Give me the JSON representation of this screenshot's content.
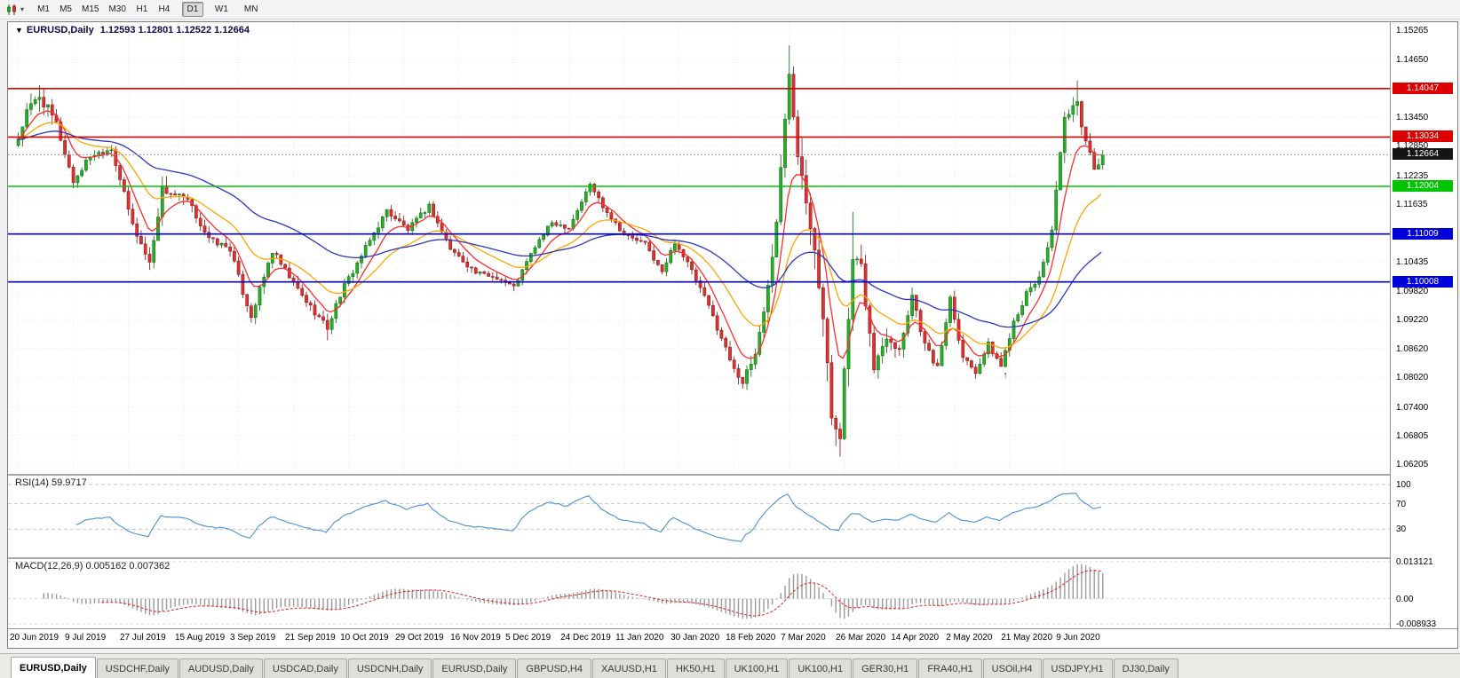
{
  "toolbar": {
    "caret": "▾",
    "timeframes": [
      {
        "label": "M1",
        "active": false
      },
      {
        "label": "M5",
        "active": false
      },
      {
        "label": "M15",
        "active": false
      },
      {
        "label": "M30",
        "active": false
      },
      {
        "label": "H1",
        "active": false
      },
      {
        "label": "H4",
        "active": false
      },
      {
        "label": "D1",
        "active": true
      },
      {
        "label": "W1",
        "active": false
      },
      {
        "label": "MN",
        "active": false
      }
    ]
  },
  "chart": {
    "header": {
      "marker": "▼",
      "symbol": "EURUSD,Daily",
      "ohlc": "1.12593 1.12801 1.12522 1.12664"
    }
  },
  "rsi": {
    "header": "RSI(14) 59.9717",
    "axis": [
      "100",
      "70",
      "30"
    ]
  },
  "macd": {
    "header": "MACD(12,26,9) 0.005162 0.007362",
    "axis": [
      "0.013121",
      "0.00",
      "-0.008933"
    ]
  },
  "tabs": [
    {
      "label": "EURUSD,Daily",
      "active": true
    },
    {
      "label": "USDCHF,Daily",
      "active": false
    },
    {
      "label": "AUDUSD,Daily",
      "active": false
    },
    {
      "label": "USDCAD,Daily",
      "active": false
    },
    {
      "label": "USDCNH,Daily",
      "active": false
    },
    {
      "label": "EURUSD,Daily",
      "active": false
    },
    {
      "label": "GBPUSD,H4",
      "active": false
    },
    {
      "label": "XAUUSD,H1",
      "active": false
    },
    {
      "label": "HK50,H1",
      "active": false
    },
    {
      "label": "UK100,H1",
      "active": false
    },
    {
      "label": "UK100,H1",
      "active": false
    },
    {
      "label": "GER30,H1",
      "active": false
    },
    {
      "label": "FRA40,H1",
      "active": false
    },
    {
      "label": "USOil,H4",
      "active": false
    },
    {
      "label": "USDJPY,H1",
      "active": false
    },
    {
      "label": "DJ30,Daily",
      "active": false
    }
  ],
  "chart_data": {
    "type": "candlestick",
    "symbol": "EURUSD",
    "timeframe": "Daily",
    "display_ohlc": {
      "open": 1.12593,
      "high": 1.12801,
      "low": 1.12522,
      "close": 1.12664
    },
    "count": 257,
    "price_range": [
      1.06,
      1.15433
    ],
    "price_tick_labels": [
      "1.15265",
      "1.14650",
      "1.13450",
      "1.12850",
      "1.12235",
      "1.11635",
      "1.10435",
      "1.09820",
      "1.09220",
      "1.08620",
      "1.08020",
      "1.07400",
      "1.06805",
      "1.06205"
    ],
    "x_tick_labels": [
      "20 Jun 2019",
      "9 Jul 2019",
      "27 Jul 2019",
      "15 Aug 2019",
      "3 Sep 2019",
      "21 Sep 2019",
      "10 Oct 2019",
      "29 Oct 2019",
      "16 Nov 2019",
      "5 Dec 2019",
      "24 Dec 2019",
      "11 Jan 2020",
      "30 Jan 2020",
      "18 Feb 2020",
      "7 Mar 2020",
      "26 Mar 2020",
      "14 Apr 2020",
      "2 May 2020",
      "21 May 2020",
      "9 Jun 2020"
    ],
    "x_label_step": 13,
    "anchors": [
      [
        0,
        1.13,
        0.002
      ],
      [
        2,
        1.1355,
        0.0025
      ],
      [
        5,
        1.139,
        0.003
      ],
      [
        9,
        1.133,
        0.0025
      ],
      [
        13,
        1.121,
        0.0018
      ],
      [
        17,
        1.1265,
        0.0015
      ],
      [
        22,
        1.128,
        0.0015
      ],
      [
        27,
        1.112,
        0.0018
      ],
      [
        31,
        1.104,
        0.002
      ],
      [
        34,
        1.1195,
        0.0025
      ],
      [
        40,
        1.117,
        0.0018
      ],
      [
        45,
        1.109,
        0.0015
      ],
      [
        50,
        1.107,
        0.0015
      ],
      [
        53,
        1.098,
        0.0018
      ],
      [
        55,
        1.093,
        0.0018
      ],
      [
        60,
        1.1065,
        0.0018
      ],
      [
        64,
        1.101,
        0.0015
      ],
      [
        68,
        1.096,
        0.0015
      ],
      [
        73,
        1.0905,
        0.0018
      ],
      [
        76,
        1.0975,
        0.0018
      ],
      [
        80,
        1.104,
        0.0015
      ],
      [
        87,
        1.115,
        0.0015
      ],
      [
        92,
        1.111,
        0.0013
      ],
      [
        97,
        1.116,
        0.0013
      ],
      [
        102,
        1.107,
        0.0013
      ],
      [
        108,
        1.102,
        0.0012
      ],
      [
        113,
        1.101,
        0.0012
      ],
      [
        117,
        1.099,
        0.0012
      ],
      [
        122,
        1.1075,
        0.0013
      ],
      [
        126,
        1.1125,
        0.0012
      ],
      [
        130,
        1.1115,
        0.0012
      ],
      [
        135,
        1.1205,
        0.0013
      ],
      [
        138,
        1.116,
        0.0013
      ],
      [
        143,
        1.11,
        0.0012
      ],
      [
        148,
        1.108,
        0.0012
      ],
      [
        152,
        1.102,
        0.0013
      ],
      [
        155,
        1.1085,
        0.0013
      ],
      [
        158,
        1.104,
        0.0013
      ],
      [
        163,
        1.095,
        0.0014
      ],
      [
        168,
        1.084,
        0.0016
      ],
      [
        171,
        1.079,
        0.0018
      ],
      [
        174,
        1.085,
        0.0022
      ],
      [
        177,
        1.099,
        0.003
      ],
      [
        179,
        1.113,
        0.0035
      ],
      [
        182,
        1.144,
        0.0045
      ],
      [
        184,
        1.128,
        0.0045
      ],
      [
        186,
        1.118,
        0.0045
      ],
      [
        188,
        1.108,
        0.005
      ],
      [
        190,
        1.092,
        0.005
      ],
      [
        192,
        1.072,
        0.005
      ],
      [
        194,
        1.069,
        0.0045
      ],
      [
        197,
        1.104,
        0.004
      ],
      [
        199,
        1.103,
        0.0035
      ],
      [
        202,
        1.082,
        0.003
      ],
      [
        205,
        1.089,
        0.0025
      ],
      [
        208,
        1.086,
        0.0022
      ],
      [
        211,
        1.0975,
        0.0022
      ],
      [
        214,
        1.087,
        0.002
      ],
      [
        217,
        1.082,
        0.0018
      ],
      [
        220,
        1.097,
        0.002
      ],
      [
        223,
        1.0845,
        0.0018
      ],
      [
        226,
        1.0815,
        0.0016
      ],
      [
        229,
        1.087,
        0.0015
      ],
      [
        232,
        1.0825,
        0.0015
      ],
      [
        235,
        1.092,
        0.0016
      ],
      [
        238,
        1.0975,
        0.0016
      ],
      [
        241,
        1.101,
        0.0016
      ],
      [
        244,
        1.111,
        0.002
      ],
      [
        247,
        1.134,
        0.0025
      ],
      [
        250,
        1.137,
        0.0028
      ],
      [
        252,
        1.1295,
        0.0025
      ],
      [
        254,
        1.124,
        0.0022
      ],
      [
        256,
        1.12664,
        0.002
      ]
    ],
    "spikes": [
      {
        "i": 5,
        "high": 1.1412
      },
      {
        "i": 31,
        "low": 1.1026
      },
      {
        "i": 73,
        "low": 1.0879
      },
      {
        "i": 171,
        "low": 1.0778
      },
      {
        "i": 182,
        "high": 1.1495
      },
      {
        "i": 194,
        "low": 1.0636
      },
      {
        "i": 197,
        "high": 1.1147
      },
      {
        "i": 250,
        "high": 1.1422
      }
    ],
    "levels": [
      {
        "price": 1.14047,
        "label": "1.14047",
        "color": "#dd0000"
      },
      {
        "price": 1.13034,
        "label": "1.13034",
        "color": "#dd0000"
      },
      {
        "price": 1.12664,
        "label": "1.12664",
        "color": "#141414",
        "style": "current"
      },
      {
        "price": 1.12004,
        "label": "1.12004",
        "color": "#00c400"
      },
      {
        "price": 1.11009,
        "label": "1.11009",
        "color": "#0000d8"
      },
      {
        "price": 1.10008,
        "label": "1.10008",
        "color": "#0000d8"
      }
    ],
    "candle_colors": {
      "up": "#27b027",
      "up_stroke": "#0a620a",
      "down": "#dd3232",
      "down_stroke": "#7c1010"
    },
    "ma": [
      {
        "period": 8,
        "color": "#ff2d2d"
      },
      {
        "period": 21,
        "color": "#ffa500"
      },
      {
        "period": 55,
        "color": "#2a35c0"
      }
    ],
    "rsi": {
      "period": 14,
      "current": 59.9717,
      "levels": [
        100,
        70,
        30
      ],
      "color": "#4a90d2"
    },
    "macd": {
      "fast": 12,
      "slow": 26,
      "signal": 9,
      "current": [
        0.005162,
        0.007362
      ],
      "ylim": [
        -0.008933,
        0.013121
      ],
      "hist_color": "#9a9a9a",
      "signal_color": "#e02020"
    },
    "markers": [
      {
        "i": 233,
        "glyph": "↑",
        "color": "#2222cc"
      }
    ]
  }
}
